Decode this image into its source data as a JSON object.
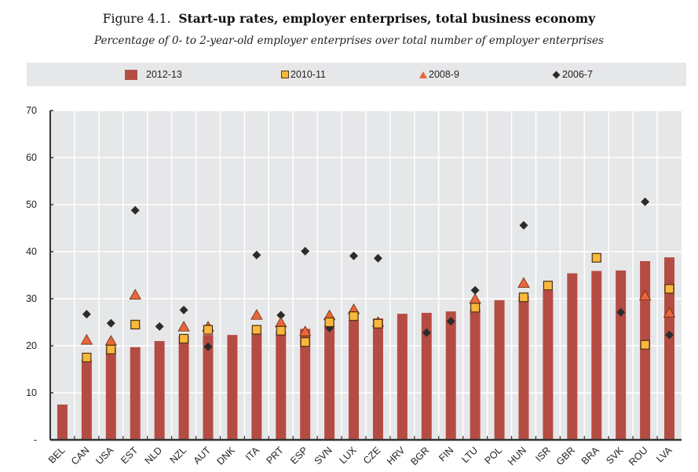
{
  "header": {
    "figure_label": "Figure 4.1.",
    "title": "Start-up rates, employer enterprises, total business economy",
    "subtitle": "Percentage of 0- to 2-year-old employer enterprises over total number of employer enterprises"
  },
  "legend": {
    "items": [
      {
        "label": "2012-13",
        "marker": "bar"
      },
      {
        "label": "2010-11",
        "marker": "square"
      },
      {
        "label": "2008-9",
        "marker": "triangle"
      },
      {
        "label": "2006-7",
        "marker": "diamond"
      }
    ]
  },
  "colors": {
    "bar": "#b54c44",
    "square": "#f8b73d",
    "triangle": "#e8663a",
    "diamond": "#2b2b2b",
    "plot_background": "#e6e7e9",
    "legend_background": "#e6e7e9"
  },
  "chart_data": {
    "type": "bar",
    "title": "Start-up rates, employer enterprises, total business economy",
    "subtitle": "Percentage of 0- to 2-year-old employer enterprises over total number of employer enterprises",
    "xlabel": "",
    "ylabel": "",
    "ylim": [
      0,
      70
    ],
    "yticks": [
      0,
      10,
      20,
      30,
      40,
      50,
      60,
      70
    ],
    "ytick_labels": [
      "-",
      "10",
      "20",
      "30",
      "40",
      "50",
      "60",
      "70"
    ],
    "grid": true,
    "legend_position": "top",
    "categories": [
      "BEL",
      "CAN",
      "USA",
      "EST",
      "NLD",
      "NZL",
      "AUT",
      "DNK",
      "ITA",
      "PRT",
      "ESP",
      "SVN",
      "LUX",
      "CZE",
      "HRV",
      "BGR",
      "FIN",
      "LTU",
      "POL",
      "HUN",
      "ISR",
      "GBR",
      "BRA",
      "SVK",
      "ROU",
      "LVA"
    ],
    "series": [
      {
        "name": "2012-13",
        "kind": "bar",
        "values": [
          7.5,
          17.0,
          19.5,
          19.7,
          21.0,
          22.0,
          22.3,
          22.3,
          22.7,
          23.0,
          23.6,
          24.5,
          25.5,
          25.8,
          26.8,
          27.0,
          27.3,
          27.8,
          29.7,
          30.5,
          31.8,
          35.4,
          35.9,
          36.0,
          38.0,
          38.8
        ]
      },
      {
        "name": "2010-11",
        "kind": "square",
        "values": [
          null,
          17.5,
          19.2,
          24.5,
          null,
          21.5,
          23.4,
          null,
          23.4,
          23.2,
          20.8,
          25.0,
          26.3,
          24.7,
          null,
          null,
          null,
          28.1,
          null,
          30.3,
          32.8,
          null,
          38.7,
          null,
          20.2,
          32.1
        ]
      },
      {
        "name": "2008-9",
        "kind": "triangle",
        "values": [
          null,
          21.2,
          21.0,
          30.8,
          null,
          24.0,
          24.0,
          null,
          26.5,
          24.9,
          23.0,
          26.4,
          27.7,
          25.0,
          null,
          null,
          null,
          29.9,
          null,
          33.3,
          null,
          null,
          null,
          null,
          30.6,
          27.0
        ]
      },
      {
        "name": "2006-7",
        "kind": "diamond",
        "values": [
          null,
          26.7,
          24.8,
          48.8,
          24.1,
          27.6,
          19.8,
          null,
          39.3,
          26.5,
          40.1,
          23.8,
          39.1,
          38.6,
          null,
          22.8,
          25.2,
          31.8,
          null,
          45.6,
          null,
          null,
          null,
          27.1,
          50.6,
          22.3
        ]
      }
    ]
  }
}
